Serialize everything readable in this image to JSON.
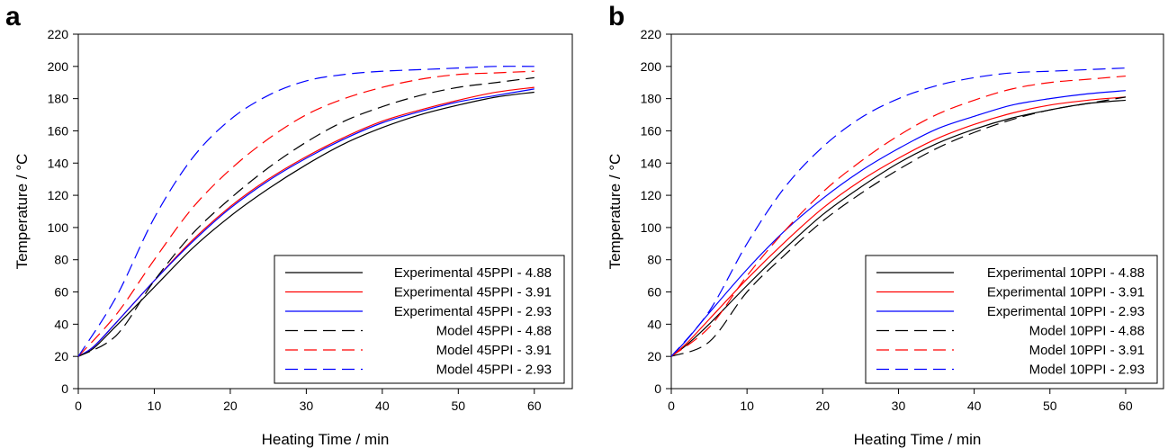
{
  "chart_data": [
    {
      "panel": "a",
      "type": "line",
      "xlabel": "Heating Time / min",
      "ylabel": "Temperature / °C",
      "xlim": [
        0,
        65
      ],
      "ylim": [
        0,
        220
      ],
      "xticks": [
        0,
        10,
        20,
        30,
        40,
        50,
        60
      ],
      "yticks": [
        0,
        20,
        40,
        60,
        80,
        100,
        120,
        140,
        160,
        180,
        200,
        220
      ],
      "grid": false,
      "legend_position": "bottom-right",
      "series": [
        {
          "name": "Experimental 45PPI - 4.88",
          "color": "#000000",
          "style": "solid",
          "x": [
            0,
            2,
            5,
            10,
            15,
            20,
            25,
            30,
            35,
            40,
            45,
            50,
            55,
            60
          ],
          "y": [
            20,
            25,
            39,
            63,
            87,
            107,
            124,
            139,
            152,
            162,
            170,
            176,
            181,
            184
          ]
        },
        {
          "name": "Experimental 45PPI - 3.91",
          "color": "#ff0000",
          "style": "solid",
          "x": [
            0,
            2,
            5,
            10,
            15,
            20,
            25,
            30,
            35,
            40,
            45,
            50,
            55,
            60
          ],
          "y": [
            20,
            26,
            41,
            67,
            92,
            113,
            130,
            144,
            156,
            166,
            173,
            179,
            184,
            187
          ]
        },
        {
          "name": "Experimental 45PPI - 2.93",
          "color": "#0000ff",
          "style": "solid",
          "x": [
            0,
            2,
            5,
            10,
            15,
            20,
            25,
            30,
            35,
            40,
            45,
            50,
            55,
            60
          ],
          "y": [
            20,
            26,
            41,
            67,
            91,
            112,
            129,
            143,
            155,
            165,
            172,
            178,
            182,
            186
          ]
        },
        {
          "name": "Model 45PPI - 4.88",
          "color": "#000000",
          "style": "dashed",
          "x": [
            0,
            5,
            10,
            15,
            20,
            25,
            30,
            35,
            40,
            45,
            50,
            55,
            60
          ],
          "y": [
            20,
            33,
            67,
            96,
            118,
            137,
            153,
            166,
            175,
            182,
            187,
            190,
            193
          ]
        },
        {
          "name": "Model 45PPI - 3.91",
          "color": "#ff0000",
          "style": "dashed",
          "x": [
            0,
            5,
            10,
            15,
            20,
            25,
            30,
            35,
            40,
            45,
            50,
            55,
            60
          ],
          "y": [
            20,
            46,
            80,
            112,
            136,
            155,
            170,
            180,
            187,
            192,
            195,
            196,
            197
          ]
        },
        {
          "name": "Model 45PPI - 2.93",
          "color": "#0000ff",
          "style": "dashed",
          "x": [
            0,
            5,
            10,
            15,
            20,
            25,
            30,
            35,
            40,
            45,
            50,
            55,
            60
          ],
          "y": [
            20,
            57,
            106,
            143,
            167,
            182,
            191,
            195,
            197,
            198,
            199,
            200,
            200
          ]
        }
      ]
    },
    {
      "panel": "b",
      "type": "line",
      "xlabel": "Heating Time / min",
      "ylabel": "Temperature / °C",
      "xlim": [
        0,
        65
      ],
      "ylim": [
        0,
        220
      ],
      "xticks": [
        0,
        10,
        20,
        30,
        40,
        50,
        60
      ],
      "yticks": [
        0,
        20,
        40,
        60,
        80,
        100,
        120,
        140,
        160,
        180,
        200,
        220
      ],
      "grid": false,
      "legend_position": "bottom-right",
      "series": [
        {
          "name": "Experimental 10PPI - 4.88",
          "color": "#000000",
          "style": "solid",
          "x": [
            0,
            2,
            5,
            10,
            15,
            20,
            25,
            30,
            35,
            40,
            45,
            50,
            55,
            60
          ],
          "y": [
            20,
            27,
            40,
            64,
            87,
            108,
            125,
            140,
            152,
            161,
            168,
            173,
            177,
            179
          ]
        },
        {
          "name": "Experimental 10PPI - 3.91",
          "color": "#ff0000",
          "style": "solid",
          "x": [
            0,
            2,
            5,
            10,
            15,
            20,
            25,
            30,
            35,
            40,
            45,
            50,
            55,
            60
          ],
          "y": [
            20,
            28,
            43,
            68,
            91,
            112,
            129,
            143,
            155,
            164,
            171,
            176,
            179,
            181
          ]
        },
        {
          "name": "Experimental 10PPI - 2.93",
          "color": "#0000ff",
          "style": "solid",
          "x": [
            0,
            2,
            5,
            10,
            15,
            20,
            25,
            30,
            35,
            40,
            45,
            50,
            55,
            60
          ],
          "y": [
            20,
            30,
            47,
            74,
            98,
            118,
            135,
            149,
            161,
            169,
            176,
            180,
            183,
            185
          ]
        },
        {
          "name": "Model 10PPI - 4.88",
          "color": "#000000",
          "style": "dashed",
          "x": [
            0,
            5,
            10,
            15,
            20,
            25,
            30,
            35,
            40,
            45,
            50,
            55,
            60
          ],
          "y": [
            20,
            29,
            60,
            83,
            104,
            121,
            136,
            149,
            159,
            167,
            173,
            177,
            181
          ]
        },
        {
          "name": "Model 10PPI - 3.91",
          "color": "#ff0000",
          "style": "dashed",
          "x": [
            0,
            5,
            10,
            15,
            20,
            25,
            30,
            35,
            40,
            45,
            50,
            55,
            60
          ],
          "y": [
            20,
            38,
            70,
            98,
            122,
            141,
            157,
            170,
            179,
            186,
            190,
            192,
            194
          ]
        },
        {
          "name": "Model 10PPI - 2.93",
          "color": "#0000ff",
          "style": "dashed",
          "x": [
            0,
            5,
            10,
            15,
            20,
            25,
            30,
            35,
            40,
            45,
            50,
            55,
            60
          ],
          "y": [
            20,
            48,
            90,
            125,
            150,
            168,
            180,
            188,
            193,
            196,
            197,
            198,
            199
          ]
        }
      ]
    }
  ]
}
